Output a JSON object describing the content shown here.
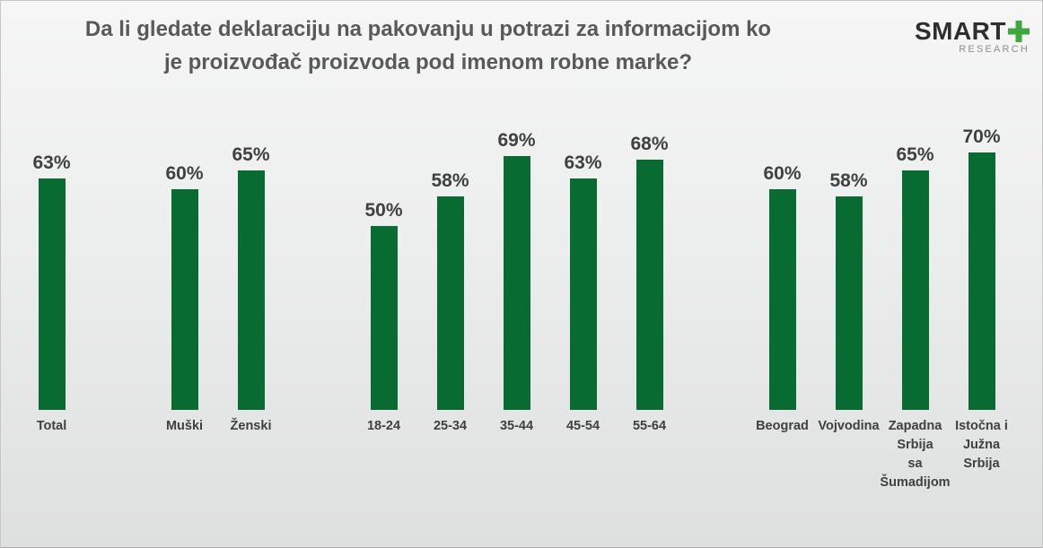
{
  "title": {
    "line1": "Da li gledate deklaraciju na pakovanju u potrazi za informacijom ko",
    "line2": "je proizvođač proizvoda pod imenom robne marke?"
  },
  "logo": {
    "brand": "SMART",
    "plus_icon": "green-plus",
    "sub": "RESEARCH"
  },
  "colors": {
    "bar": "#076B32",
    "title": "#595959",
    "label": "#404040",
    "logo_text": "#2E2E2E",
    "logo_plus": "#3EA83C",
    "logo_sub": "#8F8F8F",
    "bg_top": "#F6F6F6",
    "bg_bottom": "#DEDFDF"
  },
  "chart_data": {
    "type": "bar",
    "title": "Da li gledate deklaraciju na pakovanju u potrazi za informacijom ko je proizvođač proizvoda pod imenom robne marke?",
    "unit": "%",
    "ylim": [
      0,
      100
    ],
    "grid": false,
    "legend": null,
    "bar_color": "#076B32",
    "groups": [
      {
        "name": "total",
        "bars": [
          {
            "label": "Total",
            "value": 63
          }
        ]
      },
      {
        "name": "pol",
        "bars": [
          {
            "label": "Muški",
            "value": 60
          },
          {
            "label": "Ženski",
            "value": 65
          }
        ]
      },
      {
        "name": "starost",
        "bars": [
          {
            "label": "18-24",
            "value": 50
          },
          {
            "label": "25-34",
            "value": 58
          },
          {
            "label": "35-44",
            "value": 69
          },
          {
            "label": "45-54",
            "value": 63
          },
          {
            "label": "55-64",
            "value": 68
          }
        ]
      },
      {
        "name": "region",
        "bars": [
          {
            "label": "Beograd",
            "value": 60
          },
          {
            "label": "Vojvodina",
            "value": 58
          },
          {
            "label": "Zapadna\nSrbija\nsa\nŠumadijom",
            "value": 65
          },
          {
            "label": "Istočna i\nJužna\nSrbija",
            "value": 70
          }
        ]
      }
    ]
  }
}
